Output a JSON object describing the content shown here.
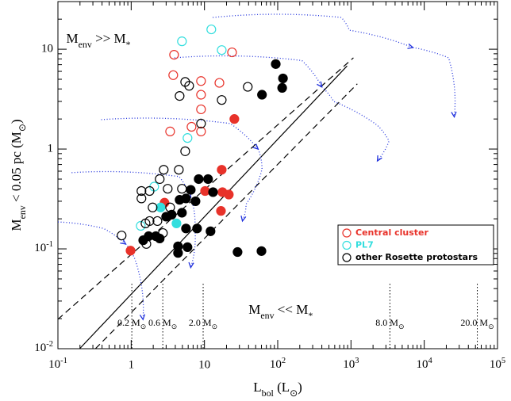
{
  "chart_data": {
    "type": "scatter",
    "xlabel": [
      {
        "t": "L"
      },
      {
        "t": "bol",
        "sub": true
      },
      {
        "t": " (L"
      },
      {
        "t": "⊙",
        "sub": true
      },
      {
        "t": ")"
      }
    ],
    "ylabel": [
      {
        "t": "M"
      },
      {
        "t": "env",
        "sub": true
      },
      {
        "t": " < 0.05 pc  (M"
      },
      {
        "t": "⊙",
        "sub": true
      },
      {
        "t": ")"
      }
    ],
    "annotations": [
      {
        "x": 0.13,
        "y": 12.5,
        "parts": [
          {
            "t": "M"
          },
          {
            "t": "env",
            "sub": true
          },
          {
            "t": "  >>  M"
          },
          {
            "t": "*",
            "sub": true
          }
        ]
      },
      {
        "x": 40,
        "y": 0.024,
        "parts": [
          {
            "t": "M"
          },
          {
            "t": "env",
            "sub": true
          },
          {
            "t": "  <<  M"
          },
          {
            "t": "*",
            "sub": true
          }
        ]
      }
    ],
    "xscale": "log",
    "yscale": "log",
    "xlim": [
      0.1,
      100000
    ],
    "ylim": [
      0.01,
      30
    ],
    "xticks": [
      {
        "value": 0.1,
        "label": "10",
        "exponent": "-1"
      },
      1,
      10,
      {
        "value": 100,
        "label": "10",
        "exponent": "2"
      },
      {
        "value": 1000,
        "label": "10",
        "exponent": "3"
      },
      {
        "value": 10000,
        "label": "10",
        "exponent": "4"
      },
      {
        "value": 100000,
        "label": "10",
        "exponent": "5"
      }
    ],
    "yticks": [
      {
        "value": 0.01,
        "label": "10",
        "exponent": "-2"
      },
      {
        "value": 0.1,
        "label": "10",
        "exponent": "-1"
      },
      1,
      10
    ],
    "series": [
      {
        "name": "Central cluster",
        "color": "#e8322a",
        "x": [
          3.85,
          3.75,
          8.98,
          8.98,
          16.0,
          23.8,
          8.98,
          3.4,
          8.98,
          6.66,
          25.6,
          16.8,
          17.6,
          21.5,
          10.2,
          0.98,
          2.85,
          17.2
        ],
        "values": [
          8.8,
          5.5,
          4.8,
          3.5,
          4.6,
          9.3,
          2.5,
          1.5,
          1.5,
          1.67,
          2.0,
          0.24,
          0.37,
          0.35,
          0.38,
          0.096,
          0.29,
          0.62
        ],
        "filled": [
          false,
          false,
          false,
          false,
          false,
          false,
          false,
          false,
          false,
          false,
          true,
          true,
          true,
          true,
          true,
          true,
          true,
          true
        ]
      },
      {
        "name": "PL7",
        "color": "#33dede",
        "x": [
          12.4,
          4.93,
          17.2,
          5.87,
          2.06,
          1.35,
          2.52,
          4.15
        ],
        "values": [
          15.8,
          12.0,
          9.8,
          1.29,
          0.42,
          0.17,
          0.26,
          0.18
        ],
        "filled": [
          false,
          false,
          false,
          false,
          false,
          false,
          true,
          true
        ]
      },
      {
        "name": "other Rosette protostars",
        "color": "#000000",
        "x": [
          5.46,
          6.18,
          4.58,
          17.2,
          8.98,
          5.46,
          4.47,
          2.78,
          2.45,
          1.38,
          1.78,
          3.15,
          4.93,
          1.96,
          1.78,
          2.28,
          1.57,
          2.71,
          3.4,
          0.74,
          1.61,
          39,
          1.38,
          94,
          118,
          115,
          61,
          8.34,
          11.2,
          6.5,
          5.6,
          7.55,
          13.1,
          4.93,
          3.57,
          3.0,
          4.58,
          1.73,
          2.17,
          2.45,
          5.6,
          7.93,
          12.1,
          4.36,
          5.87,
          4.36,
          28.3,
          60,
          1.46
        ],
        "values": [
          4.7,
          4.3,
          3.4,
          3.1,
          1.8,
          0.95,
          0.62,
          0.62,
          0.5,
          0.38,
          0.38,
          0.4,
          0.4,
          0.26,
          0.19,
          0.19,
          0.18,
          0.144,
          0.26,
          0.136,
          0.112,
          4.2,
          0.32,
          7.1,
          5.1,
          4.1,
          3.5,
          0.5,
          0.5,
          0.39,
          0.32,
          0.3,
          0.37,
          0.23,
          0.22,
          0.21,
          0.31,
          0.134,
          0.134,
          0.127,
          0.16,
          0.16,
          0.15,
          0.106,
          0.104,
          0.091,
          0.093,
          0.095,
          0.122
        ],
        "filled": [
          false,
          false,
          false,
          false,
          false,
          false,
          false,
          false,
          false,
          false,
          false,
          false,
          false,
          false,
          false,
          false,
          false,
          false,
          false,
          false,
          false,
          false,
          false,
          true,
          true,
          true,
          true,
          true,
          true,
          true,
          true,
          true,
          true,
          true,
          true,
          true,
          true,
          true,
          true,
          true,
          true,
          true,
          true,
          true,
          true,
          true,
          true,
          true,
          true
        ]
      }
    ],
    "lines": [
      {
        "style": "solid",
        "x": [
          0.198,
          885
        ],
        "y": [
          0.01,
          6.8
        ]
      },
      {
        "style": "dashed",
        "x": [
          0.1,
          1080
        ],
        "y": [
          0.0197,
          8.2
        ]
      },
      {
        "style": "dashed",
        "x": [
          0.325,
          1220
        ],
        "y": [
          0.01,
          4.5
        ]
      }
    ],
    "tracks_color": "#2233dd",
    "tracks": [
      {
        "x": [
          13,
          740,
          950,
          7000
        ],
        "y": [
          20.8,
          20.8,
          15.5,
          10.4
        ]
      },
      {
        "x": [
          7000,
          21500,
          25700
        ],
        "y": [
          10.4,
          8.2,
          2.1
        ]
      },
      {
        "x": [
          3.9,
          214,
          400
        ],
        "y": [
          8.2,
          7.7,
          4.2
        ]
      },
      {
        "x": [
          400,
          580,
          2290,
          3300,
          2290
        ],
        "y": [
          4.2,
          3.0,
          1.73,
          1.2,
          0.76
        ]
      },
      {
        "x": [
          0.39,
          22.6,
          54
        ],
        "y": [
          1.97,
          1.8,
          1.0
        ]
      },
      {
        "x": [
          54,
          61,
          37,
          33
        ],
        "y": [
          1.0,
          0.63,
          0.28,
          0.19
        ]
      },
      {
        "x": [
          0.154,
          4.5,
          6.5
        ],
        "y": [
          0.58,
          0.53,
          0.33
        ]
      },
      {
        "x": [
          6.5,
          7.4,
          6.5
        ],
        "y": [
          0.33,
          0.16,
          0.065
        ]
      },
      {
        "x": [
          0.1,
          0.42,
          0.84
        ],
        "y": [
          0.186,
          0.16,
          0.112
        ]
      },
      {
        "x": [
          0.84,
          1.13,
          1.45
        ],
        "y": [
          0.112,
          0.078,
          0.0196
        ]
      }
    ],
    "mass_lines": [
      {
        "x": 1.02,
        "label": "0.2 M",
        "unit": "⊙"
      },
      {
        "x": 2.7,
        "label": "0.6 M",
        "unit": "⊙"
      },
      {
        "x": 9.6,
        "label": "2.0 M",
        "unit": "⊙"
      },
      {
        "x": 3400,
        "label": "8.0 M",
        "unit": "⊙"
      },
      {
        "x": 53000,
        "label": "20.0 M",
        "unit": "⊙"
      }
    ]
  }
}
